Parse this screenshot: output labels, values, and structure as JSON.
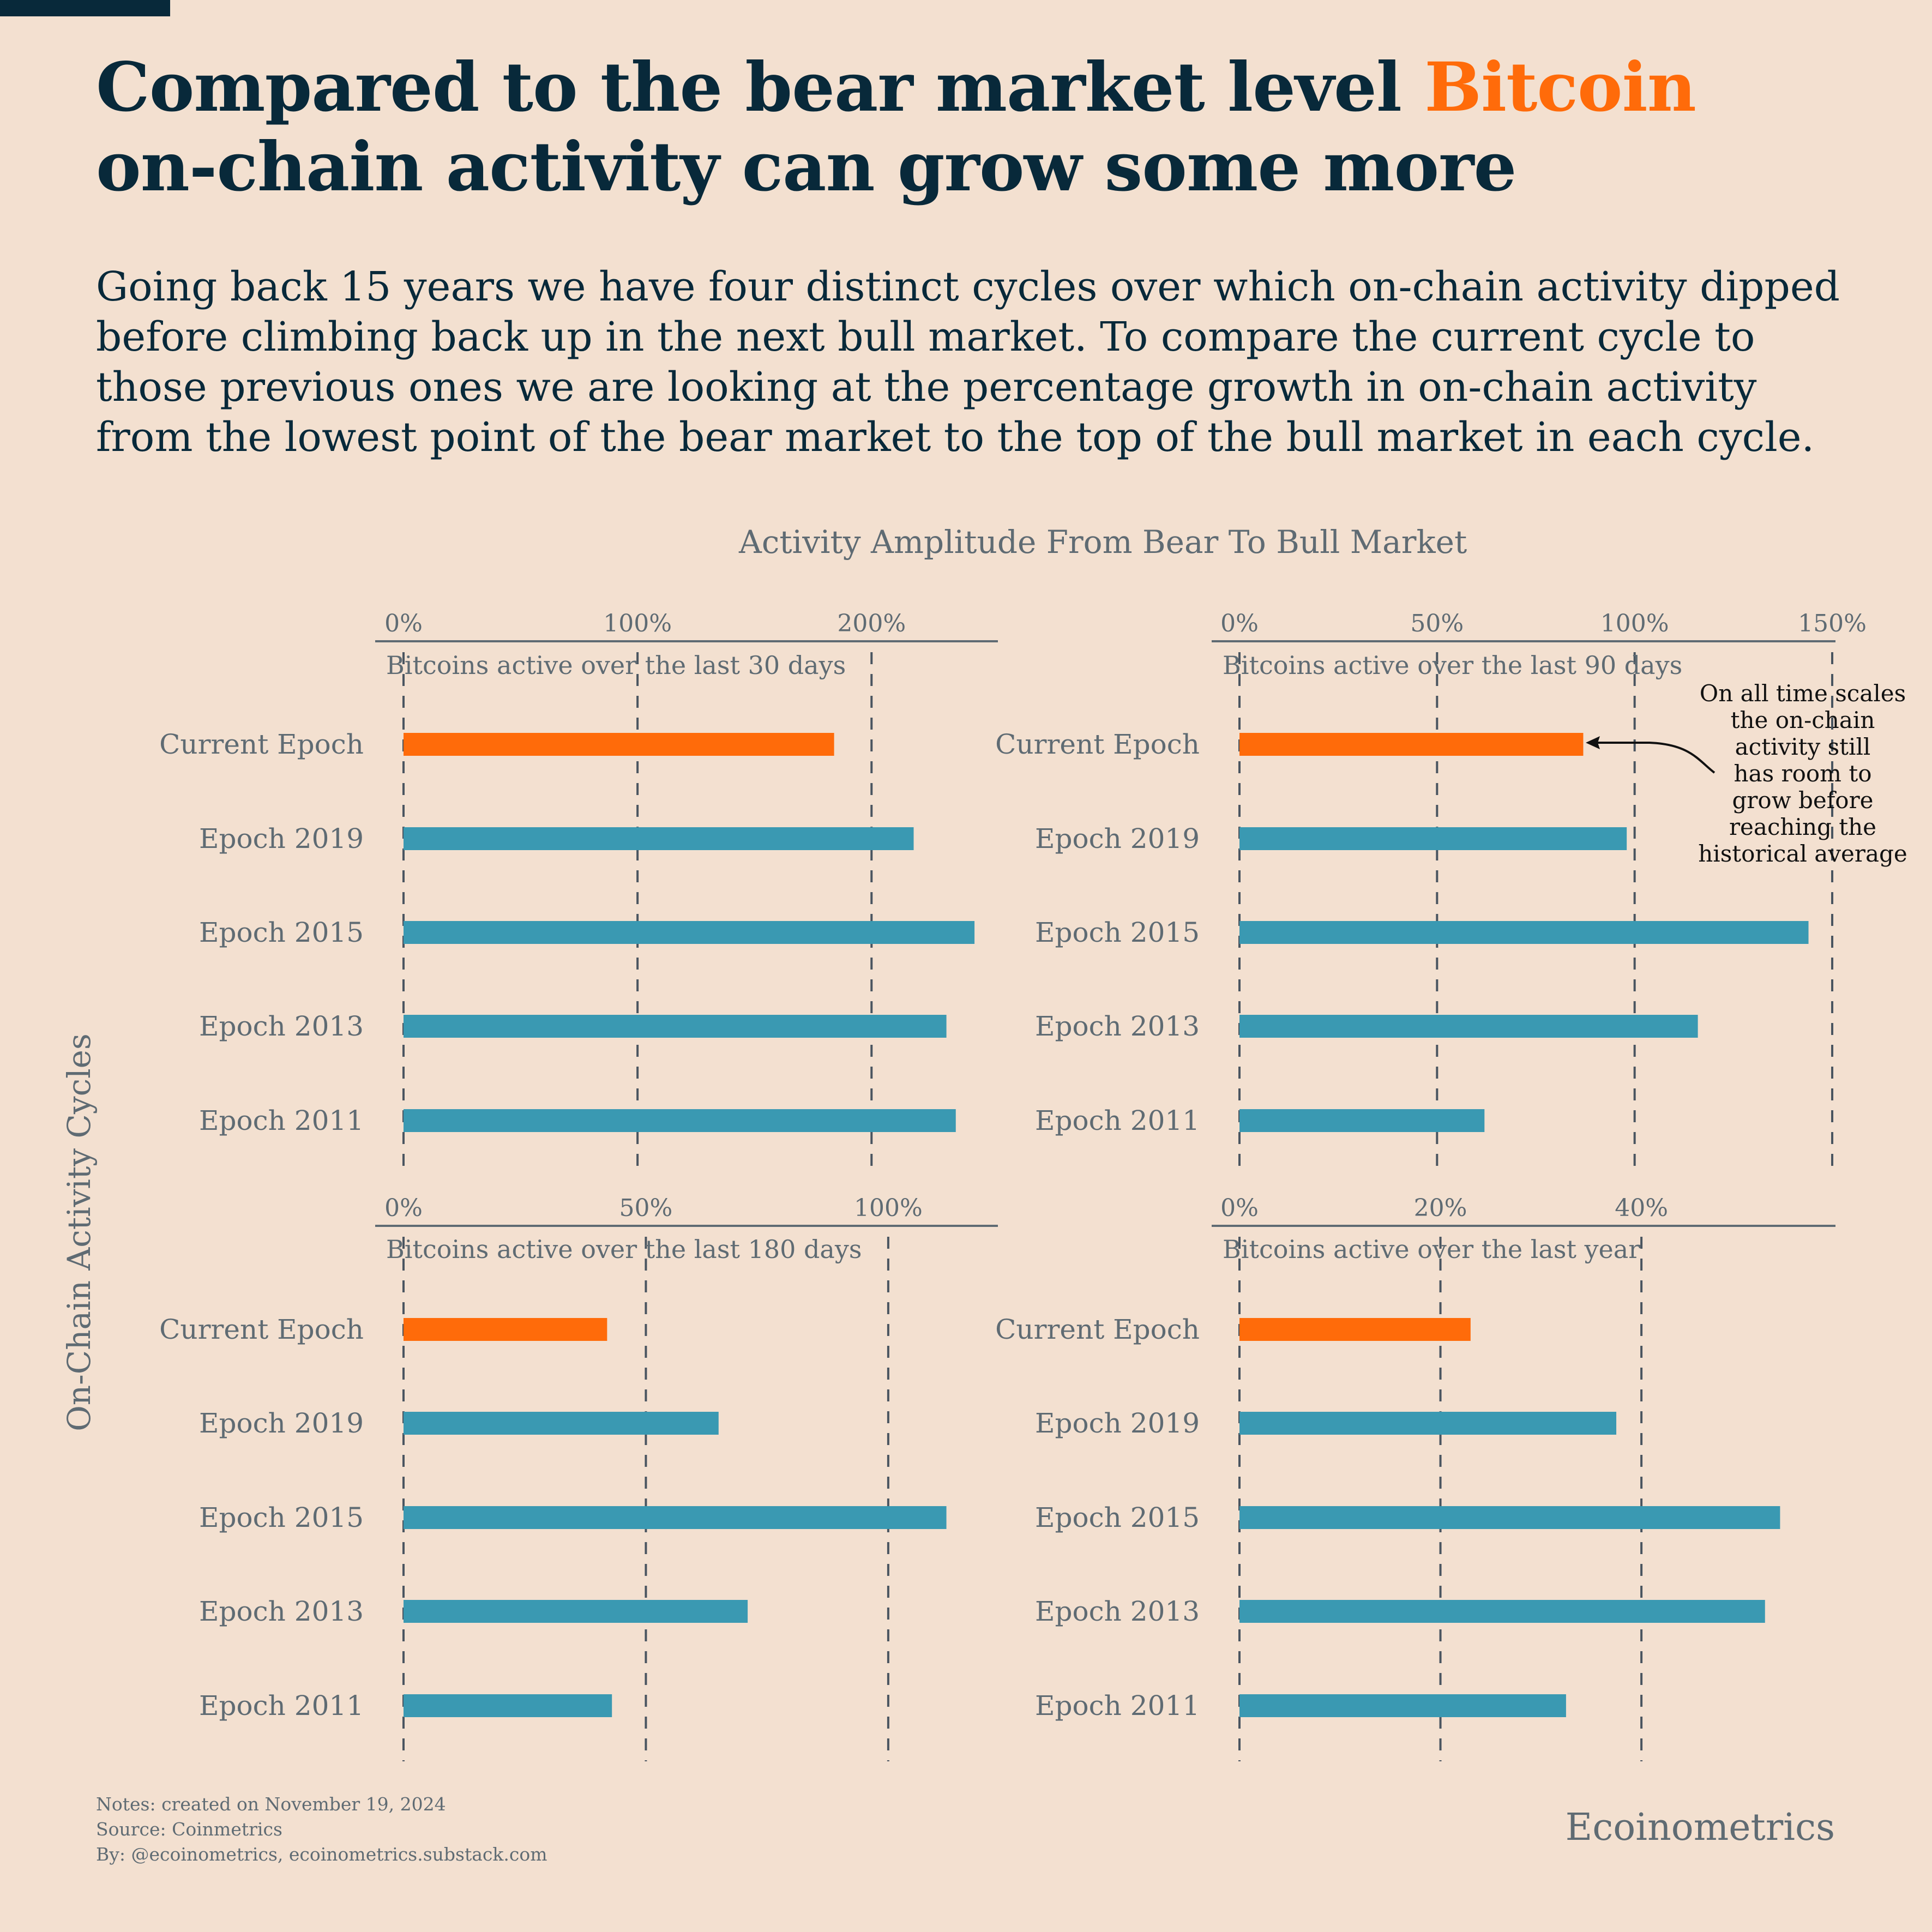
{
  "title": {
    "part1": "Compared to the bear market level ",
    "highlight": "Bitcoin",
    "part2": "on-chain activity can grow some more"
  },
  "subtitle": "Going back 15 years we have four distinct cycles over which on-chain activity dipped before climbing back up in the next bull market. To compare the current cycle to those previous ones we are looking at the percentage growth in on-chain activity from the lowest point of the bear market to the top of the bull market in each cycle.",
  "chart_title": "Activity Amplitude From Bear To Bull Market",
  "y_axis_label": "On-Chain Activity Cycles",
  "annotation": {
    "lines": [
      "On all time scales",
      "the on-chain",
      "activity still",
      "has room to",
      "grow before",
      "reaching the",
      "historical average"
    ]
  },
  "colors": {
    "background": "#f3e0d0",
    "current": "#ff6b0a",
    "previous": "#3a99b2",
    "text_dark": "#08293a",
    "text_muted": "#5f6b73"
  },
  "chart_data": [
    {
      "type": "bar",
      "orientation": "horizontal",
      "title": "Bitcoins active over the last 30 days",
      "categories": [
        "Current Epoch",
        "Epoch 2019",
        "Epoch 2015",
        "Epoch 2013",
        "Epoch 2011"
      ],
      "values": [
        184,
        218,
        244,
        232,
        236
      ],
      "xlim": [
        0,
        254
      ],
      "ticks": [
        0,
        100,
        200
      ],
      "tick_labels": [
        "0%",
        "100%",
        "200%"
      ],
      "grid": true
    },
    {
      "type": "bar",
      "orientation": "horizontal",
      "title": "Bitcoins active over the last 90 days",
      "categories": [
        "Current Epoch",
        "Epoch 2019",
        "Epoch 2015",
        "Epoch 2013",
        "Epoch 2011"
      ],
      "values": [
        87,
        98,
        144,
        116,
        62
      ],
      "xlim": [
        0,
        150
      ],
      "ticks": [
        0,
        50,
        100,
        150
      ],
      "tick_labels": [
        "0%",
        "50%",
        "100%",
        "150%"
      ],
      "grid": true
    },
    {
      "type": "bar",
      "orientation": "horizontal",
      "title": "Bitcoins active over the last 180 days",
      "categories": [
        "Current Epoch",
        "Epoch 2019",
        "Epoch 2015",
        "Epoch 2013",
        "Epoch 2011"
      ],
      "values": [
        42,
        65,
        112,
        71,
        43
      ],
      "xlim": [
        0,
        117
      ],
      "ticks": [
        0,
        50,
        100
      ],
      "tick_labels": [
        "0%",
        "50%",
        "100%"
      ],
      "grid": true
    },
    {
      "type": "bar",
      "orientation": "horizontal",
      "title": "Bitcoins active over the last year",
      "categories": [
        "Current Epoch",
        "Epoch 2019",
        "Epoch 2015",
        "Epoch 2013",
        "Epoch 2011"
      ],
      "values": [
        23,
        37.5,
        53.8,
        52.3,
        32.5
      ],
      "xlim": [
        0,
        56.6
      ],
      "ticks": [
        0,
        20,
        40
      ],
      "tick_labels": [
        "0%",
        "20%",
        "40%"
      ],
      "grid": true
    }
  ],
  "notes": [
    "Notes: created on November 19, 2024",
    "Source: Coinmetrics",
    "By: @ecoinometrics, ecoinometrics.substack.com"
  ],
  "brand": "Ecoinometrics"
}
